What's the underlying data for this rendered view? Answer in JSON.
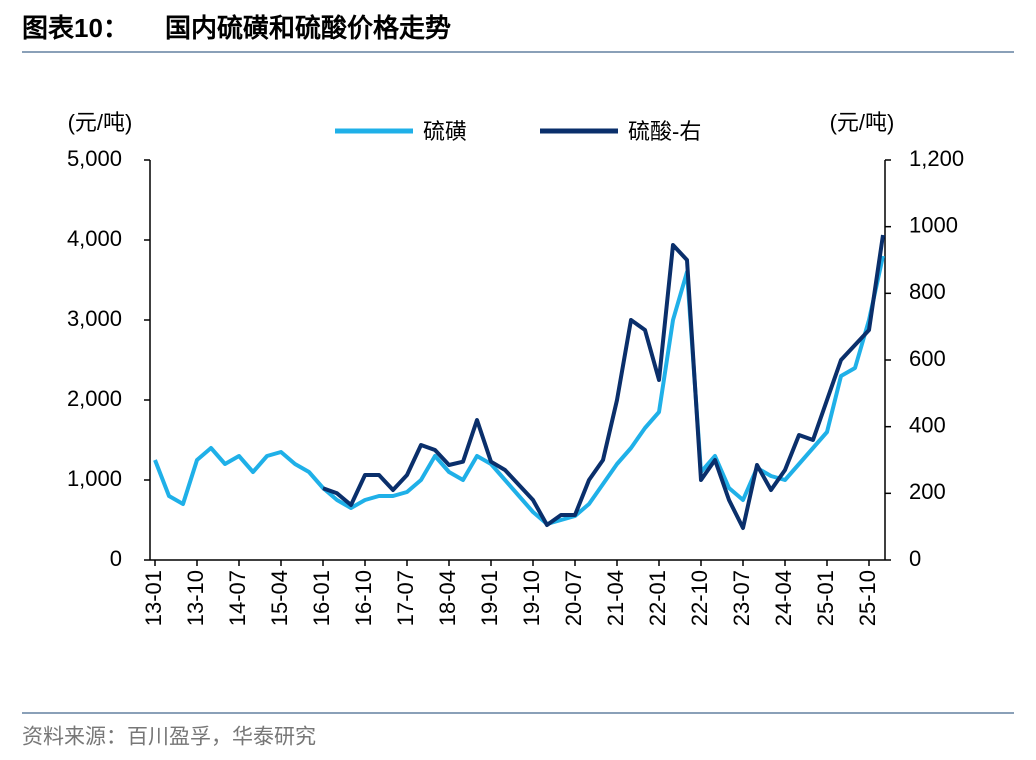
{
  "header": {
    "label": "图表10：",
    "title": "国内硫磺和硫酸价格走势"
  },
  "chart_data": {
    "type": "line",
    "y_unit": "(元/吨)",
    "y2_unit": "(元/吨)",
    "categories": [
      "13-01",
      null,
      null,
      "13-10",
      null,
      null,
      "14-07",
      null,
      null,
      "15-04",
      null,
      null,
      "16-01",
      null,
      null,
      "16-10",
      null,
      null,
      "17-07",
      null,
      null,
      "18-04",
      null,
      null,
      "19-01",
      null,
      null,
      "19-10",
      null,
      null,
      "20-07",
      null,
      null,
      "21-04",
      null,
      null,
      "22-01",
      null,
      null,
      "22-10",
      null,
      null,
      "23-07",
      null,
      null,
      "24-04",
      null,
      null,
      "25-01",
      null,
      null,
      "25-10",
      null
    ],
    "series": [
      {
        "name": "硫磺",
        "color": "#1fb0e8",
        "axis": "y",
        "values": [
          1250,
          800,
          700,
          1250,
          1400,
          1200,
          1300,
          1100,
          1300,
          1350,
          1200,
          1100,
          900,
          750,
          650,
          750,
          800,
          800,
          850,
          1000,
          1300,
          1100,
          1000,
          1300,
          1200,
          1000,
          800,
          600,
          450,
          500,
          550,
          700,
          950,
          1200,
          1400,
          1650,
          1850,
          3000,
          3600,
          1100,
          1300,
          900,
          750,
          1150,
          1050,
          1000,
          1200,
          1400,
          1600,
          2300,
          2400,
          3000,
          3800
        ]
      },
      {
        "name": "硫酸-右",
        "color": "#0a2f6b",
        "axis": "y2",
        "values": [
          null,
          null,
          null,
          null,
          null,
          null,
          null,
          null,
          null,
          null,
          null,
          null,
          215,
          200,
          165,
          255,
          255,
          210,
          255,
          345,
          330,
          285,
          295,
          420,
          295,
          270,
          225,
          180,
          105,
          135,
          135,
          240,
          300,
          480,
          720,
          690,
          540,
          945,
          900,
          240,
          300,
          180,
          96,
          285,
          210,
          270,
          375,
          360,
          480,
          600,
          645,
          690,
          975
        ]
      }
    ],
    "ylim": [
      0,
      5000
    ],
    "yticks": [
      0,
      {
        "value": 1000,
        "label": "1,000"
      },
      {
        "value": 2000,
        "label": "2,000"
      },
      {
        "value": 3000,
        "label": "3,000"
      },
      {
        "value": 4000,
        "label": "4,000"
      },
      {
        "value": 5000,
        "label": "5,000"
      }
    ],
    "y2lim": [
      0,
      1200
    ],
    "y2ticks": [
      0,
      200,
      400,
      600,
      800,
      1000,
      {
        "value": 1200,
        "label": "1,200"
      }
    ],
    "legend": "top"
  },
  "footer": {
    "source": "资料来源：百川盈孚，华泰研究"
  }
}
